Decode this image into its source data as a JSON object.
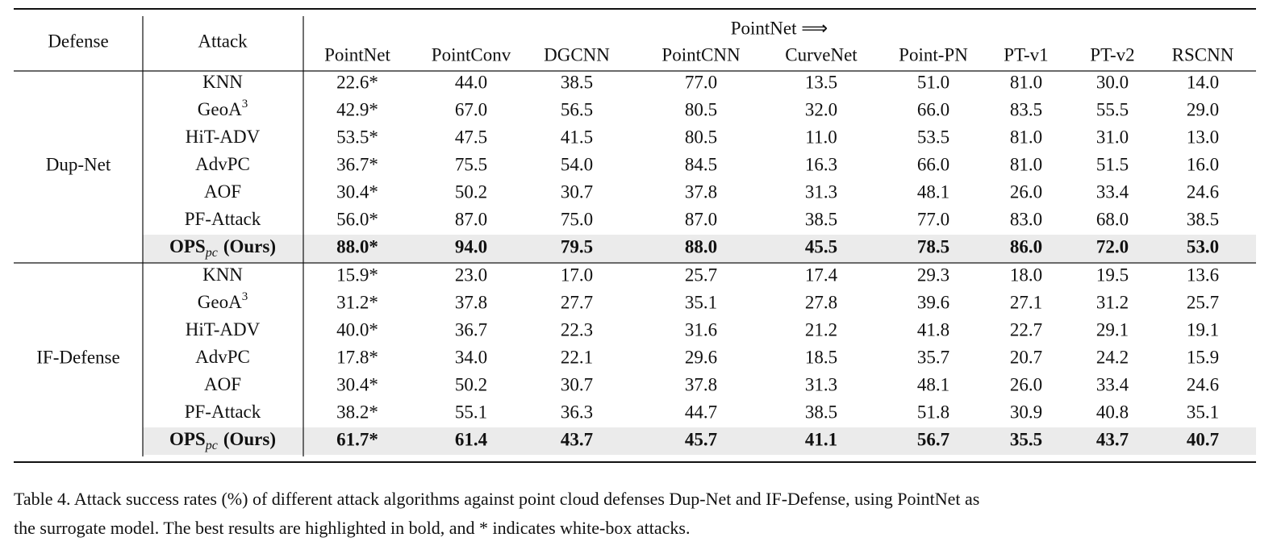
{
  "table": {
    "header": {
      "defense": "Defense",
      "attack": "Attack",
      "group": "PointNet ⟹",
      "columns": [
        "PointNet",
        "PointConv",
        "DGCNN",
        "PointCNN",
        "CurveNet",
        "Point-PN",
        "PT-v1",
        "PT-v2",
        "RSCNN"
      ]
    },
    "groups": [
      {
        "defense": "Dup-Net",
        "rows": [
          {
            "name": "KNN",
            "cells": [
              "22.6*",
              "44.0",
              "38.5",
              "77.0",
              "13.5",
              "51.0",
              "81.0",
              "30.0",
              "14.0"
            ]
          },
          {
            "name": "GeoA",
            "sup": "3",
            "cells": [
              "42.9*",
              "67.0",
              "56.5",
              "80.5",
              "32.0",
              "66.0",
              "83.5",
              "55.5",
              "29.0"
            ]
          },
          {
            "name": "HiT-ADV",
            "cells": [
              "53.5*",
              "47.5",
              "41.5",
              "80.5",
              "11.0",
              "53.5",
              "81.0",
              "31.0",
              "13.0"
            ]
          },
          {
            "name": "AdvPC",
            "cells": [
              "36.7*",
              "75.5",
              "54.0",
              "84.5",
              "16.3",
              "66.0",
              "81.0",
              "51.5",
              "16.0"
            ]
          },
          {
            "name": "AOF",
            "cells": [
              "30.4*",
              "50.2",
              "30.7",
              "37.8",
              "31.3",
              "48.1",
              "26.0",
              "33.4",
              "24.6"
            ]
          },
          {
            "name": "PF-Attack",
            "cells": [
              "56.0*",
              "87.0",
              "75.0",
              "87.0",
              "38.5",
              "77.0",
              "83.0",
              "68.0",
              "38.5"
            ]
          },
          {
            "name": "OPS",
            "sub": "pc",
            "suffix": "(Ours)",
            "bold": true,
            "cells": [
              "88.0*",
              "94.0",
              "79.5",
              "88.0",
              "45.5",
              "78.5",
              "86.0",
              "72.0",
              "53.0"
            ]
          }
        ]
      },
      {
        "defense": "IF-Defense",
        "rows": [
          {
            "name": "KNN",
            "cells": [
              "15.9*",
              "23.0",
              "17.0",
              "25.7",
              "17.4",
              "29.3",
              "18.0",
              "19.5",
              "13.6"
            ]
          },
          {
            "name": "GeoA",
            "sup": "3",
            "cells": [
              "31.2*",
              "37.8",
              "27.7",
              "35.1",
              "27.8",
              "39.6",
              "27.1",
              "31.2",
              "25.7"
            ]
          },
          {
            "name": "HiT-ADV",
            "cells": [
              "40.0*",
              "36.7",
              "22.3",
              "31.6",
              "21.2",
              "41.8",
              "22.7",
              "29.1",
              "19.1"
            ]
          },
          {
            "name": "AdvPC",
            "cells": [
              "17.8*",
              "34.0",
              "22.1",
              "29.6",
              "18.5",
              "35.7",
              "20.7",
              "24.2",
              "15.9"
            ]
          },
          {
            "name": "AOF",
            "cells": [
              "30.4*",
              "50.2",
              "30.7",
              "37.8",
              "31.3",
              "48.1",
              "26.0",
              "33.4",
              "24.6"
            ]
          },
          {
            "name": "PF-Attack",
            "cells": [
              "38.2*",
              "55.1",
              "36.3",
              "44.7",
              "38.5",
              "51.8",
              "30.9",
              "40.8",
              "35.1"
            ]
          },
          {
            "name": "OPS",
            "sub": "pc",
            "suffix": "(Ours)",
            "bold": true,
            "cells": [
              "61.7*",
              "61.4",
              "43.7",
              "45.7",
              "41.1",
              "56.7",
              "35.5",
              "43.7",
              "40.7"
            ]
          }
        ]
      }
    ]
  },
  "caption": [
    "Table 4.  Attack success rates (%) of different attack algorithms against point cloud defenses Dup-Net and IF-Defense, using PointNet as",
    "the surrogate model. The best results are highlighted in bold, and * indicates white-box attacks."
  ]
}
